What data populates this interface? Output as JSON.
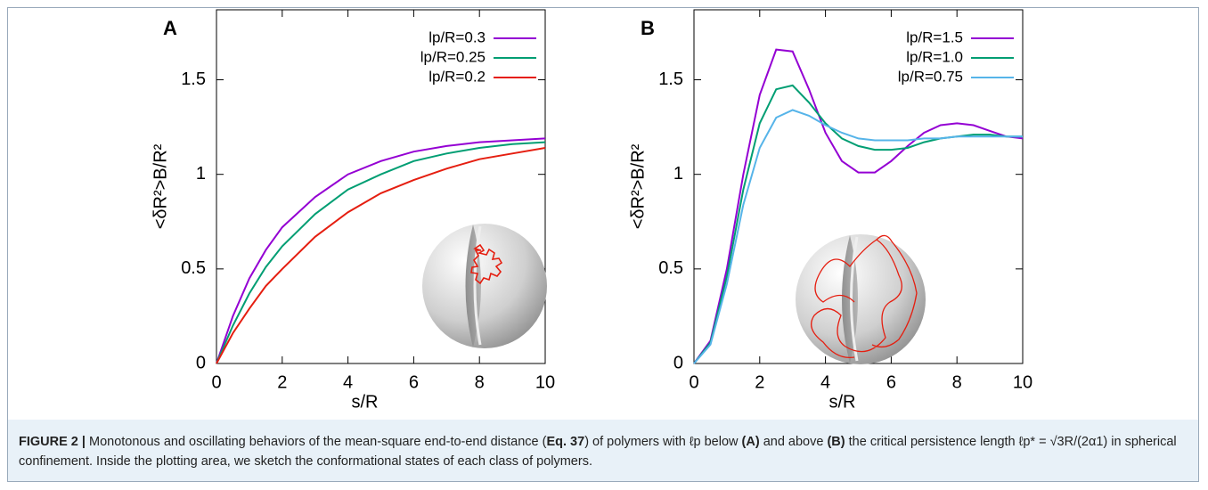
{
  "chart_data": [
    {
      "type": "line",
      "panel_label": "A",
      "xlabel": "s/R",
      "ylabel": "<δR²>B/R²",
      "xlim": [
        0,
        10
      ],
      "xticks": [
        0,
        2,
        4,
        6,
        8,
        10
      ],
      "ylim": [
        0,
        1.87
      ],
      "yticks": [
        0,
        0.5,
        1,
        1.5
      ],
      "legend": "upper right",
      "x": [
        0,
        0.5,
        1,
        1.5,
        2,
        3,
        4,
        5,
        6,
        7,
        8,
        9,
        10
      ],
      "series": [
        {
          "name": "lp/R=0.3",
          "color": "#9400d3",
          "values": [
            0,
            0.25,
            0.45,
            0.6,
            0.72,
            0.88,
            1.0,
            1.07,
            1.12,
            1.15,
            1.17,
            1.18,
            1.19
          ]
        },
        {
          "name": "lp/R=0.25",
          "color": "#009e73",
          "values": [
            0,
            0.2,
            0.37,
            0.51,
            0.62,
            0.79,
            0.92,
            1.0,
            1.07,
            1.11,
            1.14,
            1.16,
            1.17
          ]
        },
        {
          "name": "lp/R=0.2",
          "color": "#e51e10",
          "values": [
            0,
            0.16,
            0.29,
            0.41,
            0.5,
            0.67,
            0.8,
            0.9,
            0.97,
            1.03,
            1.08,
            1.11,
            1.14
          ]
        }
      ]
    },
    {
      "type": "line",
      "panel_label": "B",
      "xlabel": "s/R",
      "ylabel": "<δR²>B/R²",
      "xlim": [
        0,
        10
      ],
      "xticks": [
        0,
        2,
        4,
        6,
        8,
        10
      ],
      "ylim": [
        0,
        1.87
      ],
      "yticks": [
        0,
        0.5,
        1,
        1.5
      ],
      "legend": "upper right",
      "x": [
        0,
        0.5,
        1,
        1.5,
        2,
        2.5,
        3,
        3.5,
        4,
        4.5,
        5,
        5.5,
        6,
        6.5,
        7,
        7.5,
        8,
        8.5,
        9,
        9.5,
        10
      ],
      "series": [
        {
          "name": "lp/R=1.5",
          "color": "#9400d3",
          "values": [
            0,
            0.12,
            0.5,
            1.0,
            1.42,
            1.66,
            1.65,
            1.45,
            1.22,
            1.07,
            1.01,
            1.01,
            1.07,
            1.15,
            1.22,
            1.26,
            1.27,
            1.26,
            1.23,
            1.2,
            1.19
          ]
        },
        {
          "name": "lp/R=1.0",
          "color": "#009e73",
          "values": [
            0,
            0.11,
            0.46,
            0.92,
            1.27,
            1.45,
            1.47,
            1.38,
            1.27,
            1.19,
            1.15,
            1.13,
            1.13,
            1.14,
            1.17,
            1.19,
            1.2,
            1.21,
            1.21,
            1.2,
            1.2
          ]
        },
        {
          "name": "lp/R=0.75",
          "color": "#56b4e9",
          "values": [
            0,
            0.1,
            0.42,
            0.84,
            1.14,
            1.3,
            1.34,
            1.31,
            1.26,
            1.22,
            1.19,
            1.18,
            1.18,
            1.18,
            1.19,
            1.19,
            1.2,
            1.2,
            1.2,
            1.2,
            1.2
          ]
        }
      ]
    }
  ],
  "caption": {
    "label": "FIGURE 2 |",
    "segments": [
      "Monotonous and oscillating behaviors of the mean-square end-to-end distance (",
      "Eq. 37",
      ") of polymers with ℓp below ",
      "(A)",
      " and above ",
      "(B)",
      " the critical persistence length ℓp* = √3R/(2α1) in spherical confinement. Inside the plotting area, we sketch the conformational states of each class of polymers."
    ]
  }
}
